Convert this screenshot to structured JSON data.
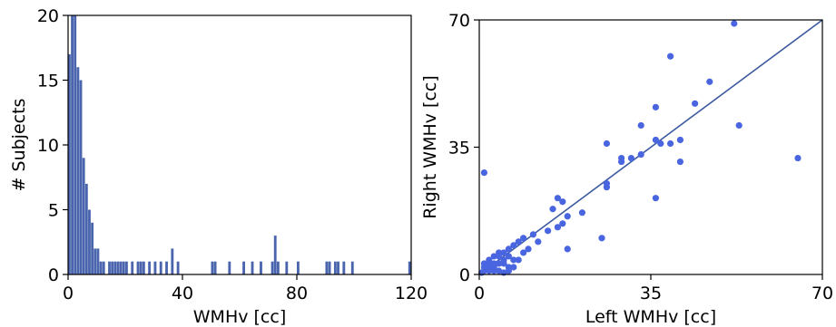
{
  "chart_data": [
    {
      "type": "bar",
      "title": "",
      "xlabel": "WMHv [cc]",
      "ylabel": "# Subjects",
      "xlim": [
        0,
        120
      ],
      "ylim": [
        0,
        20
      ],
      "xticks": [
        0,
        40,
        80,
        120
      ],
      "yticks": [
        0,
        5,
        10,
        15,
        20
      ],
      "grid": false,
      "bar_color": "#4a65ad",
      "bin_width": 1,
      "bins": [
        {
          "x": 0,
          "count": 17
        },
        {
          "x": 1,
          "count": 20
        },
        {
          "x": 2,
          "count": 20
        },
        {
          "x": 3,
          "count": 16
        },
        {
          "x": 4,
          "count": 15
        },
        {
          "x": 5,
          "count": 9
        },
        {
          "x": 6,
          "count": 7
        },
        {
          "x": 7,
          "count": 5
        },
        {
          "x": 8,
          "count": 4
        },
        {
          "x": 9,
          "count": 2
        },
        {
          "x": 10,
          "count": 2
        },
        {
          "x": 11,
          "count": 1
        },
        {
          "x": 12,
          "count": 1
        },
        {
          "x": 14,
          "count": 1
        },
        {
          "x": 15,
          "count": 1
        },
        {
          "x": 16,
          "count": 1
        },
        {
          "x": 17,
          "count": 1
        },
        {
          "x": 18,
          "count": 1
        },
        {
          "x": 19,
          "count": 1
        },
        {
          "x": 20,
          "count": 1
        },
        {
          "x": 22,
          "count": 1
        },
        {
          "x": 24,
          "count": 1
        },
        {
          "x": 25,
          "count": 1
        },
        {
          "x": 26,
          "count": 1
        },
        {
          "x": 28,
          "count": 1
        },
        {
          "x": 30,
          "count": 1
        },
        {
          "x": 32,
          "count": 1
        },
        {
          "x": 34,
          "count": 1
        },
        {
          "x": 36,
          "count": 2
        },
        {
          "x": 38,
          "count": 1
        },
        {
          "x": 50,
          "count": 1
        },
        {
          "x": 51,
          "count": 1
        },
        {
          "x": 56,
          "count": 1
        },
        {
          "x": 61,
          "count": 1
        },
        {
          "x": 64,
          "count": 1
        },
        {
          "x": 67,
          "count": 1
        },
        {
          "x": 71,
          "count": 1
        },
        {
          "x": 72,
          "count": 3
        },
        {
          "x": 73,
          "count": 1
        },
        {
          "x": 76,
          "count": 1
        },
        {
          "x": 80,
          "count": 1
        },
        {
          "x": 90,
          "count": 1
        },
        {
          "x": 91,
          "count": 1
        },
        {
          "x": 93,
          "count": 1
        },
        {
          "x": 94,
          "count": 1
        },
        {
          "x": 96,
          "count": 1
        },
        {
          "x": 99,
          "count": 1
        },
        {
          "x": 119,
          "count": 1
        }
      ]
    },
    {
      "type": "scatter",
      "title": "",
      "xlabel": "Left WMHv [cc]",
      "ylabel": "Right WMHv [cc]",
      "xlim": [
        0,
        70
      ],
      "ylim": [
        0,
        70
      ],
      "xticks": [
        0,
        35,
        70
      ],
      "yticks": [
        0,
        35,
        70
      ],
      "grid": false,
      "point_color": "#4a65e0",
      "line_color": "#3d5aa0",
      "fit_line": {
        "x": [
          0,
          70
        ],
        "y": [
          0,
          70
        ]
      },
      "points": [
        [
          52,
          69
        ],
        [
          39,
          60
        ],
        [
          47,
          53
        ],
        [
          44,
          47
        ],
        [
          36,
          46
        ],
        [
          33,
          41
        ],
        [
          26,
          36
        ],
        [
          37,
          36
        ],
        [
          36,
          37
        ],
        [
          39,
          36
        ],
        [
          41,
          37
        ],
        [
          31,
          32
        ],
        [
          33,
          33
        ],
        [
          29,
          31
        ],
        [
          53,
          41
        ],
        [
          65,
          32
        ],
        [
          41,
          31
        ],
        [
          29,
          32
        ],
        [
          1,
          28
        ],
        [
          26,
          25
        ],
        [
          26,
          24
        ],
        [
          16,
          21
        ],
        [
          17,
          20
        ],
        [
          36,
          21
        ],
        [
          15,
          18
        ],
        [
          21,
          17
        ],
        [
          18,
          16
        ],
        [
          17,
          14
        ],
        [
          16,
          13
        ],
        [
          14,
          12
        ],
        [
          11,
          11
        ],
        [
          25,
          10
        ],
        [
          9,
          10
        ],
        [
          8,
          9
        ],
        [
          7,
          8
        ],
        [
          12,
          9
        ],
        [
          18,
          7
        ],
        [
          6,
          7
        ],
        [
          5,
          6
        ],
        [
          4,
          6
        ],
        [
          3,
          5
        ],
        [
          2,
          4
        ],
        [
          1,
          3
        ],
        [
          2,
          2
        ],
        [
          1,
          1
        ],
        [
          0.5,
          0.5
        ],
        [
          3,
          2
        ],
        [
          4,
          3
        ],
        [
          5,
          4
        ],
        [
          6,
          5
        ],
        [
          3,
          1
        ],
        [
          2,
          1
        ],
        [
          7,
          4
        ],
        [
          6,
          2
        ],
        [
          8,
          4
        ],
        [
          4,
          5
        ],
        [
          5,
          3
        ],
        [
          3,
          3
        ],
        [
          2,
          3
        ],
        [
          1,
          2
        ],
        [
          4,
          1
        ],
        [
          6,
          1
        ],
        [
          5,
          0.5
        ],
        [
          7,
          2
        ],
        [
          9,
          6
        ],
        [
          10,
          7
        ]
      ]
    }
  ]
}
